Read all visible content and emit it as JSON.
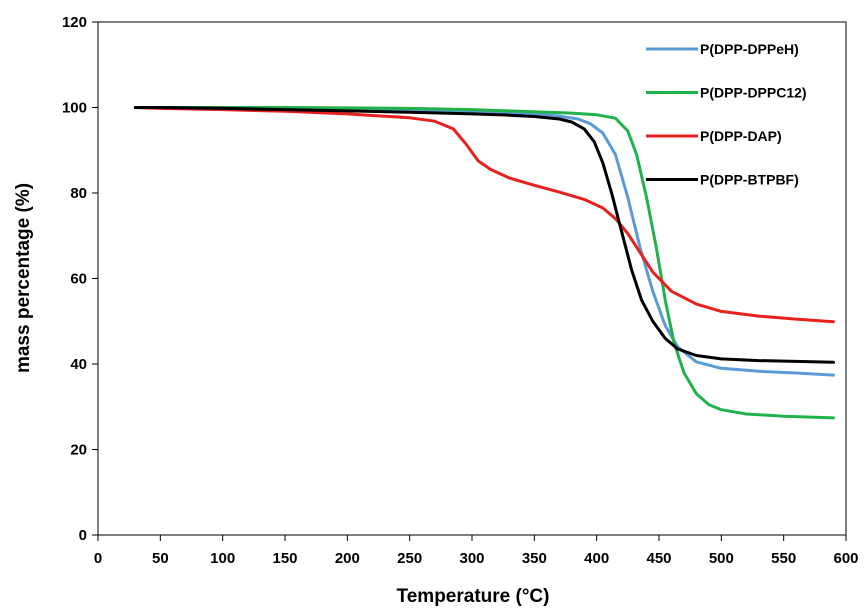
{
  "chart_data": {
    "type": "line",
    "xlabel": "Temperature (°C)",
    "ylabel": "mass percentage  (%)",
    "xlim": [
      0,
      600
    ],
    "ylim": [
      0,
      120
    ],
    "xticks": [
      0,
      50,
      100,
      150,
      200,
      250,
      300,
      350,
      400,
      450,
      500,
      550,
      600
    ],
    "yticks": [
      0,
      20,
      40,
      60,
      80,
      100,
      120
    ],
    "grid": false,
    "legend_position": "top-right",
    "series": [
      {
        "name": "P(DPP-DPPeH)",
        "color": "#5b9bd5",
        "x": [
          30,
          50,
          100,
          150,
          200,
          250,
          300,
          330,
          350,
          370,
          385,
          395,
          405,
          415,
          425,
          435,
          445,
          455,
          465,
          480,
          500,
          530,
          560,
          590
        ],
        "y": [
          100,
          99.9,
          99.8,
          99.7,
          99.6,
          99.4,
          99.1,
          98.8,
          98.5,
          98,
          97.3,
          96.2,
          94,
          89,
          79,
          67,
          57,
          49,
          44,
          40.5,
          39,
          38.3,
          37.9,
          37.4
        ]
      },
      {
        "name": "P(DPP-DPPC12)",
        "color": "#22b24c",
        "x": [
          30,
          50,
          100,
          150,
          200,
          250,
          300,
          350,
          380,
          400,
          415,
          425,
          432,
          440,
          448,
          455,
          462,
          470,
          480,
          490,
          500,
          520,
          550,
          590
        ],
        "y": [
          100,
          100,
          100,
          100,
          99.9,
          99.8,
          99.5,
          99,
          98.7,
          98.3,
          97.5,
          94.5,
          89,
          79,
          67,
          55,
          45,
          38,
          33,
          30.5,
          29.3,
          28.3,
          27.8,
          27.4
        ]
      },
      {
        "name": "P(DPP-DAP)",
        "color": "#e8201e",
        "x": [
          30,
          50,
          100,
          150,
          200,
          250,
          270,
          285,
          295,
          305,
          315,
          330,
          350,
          370,
          390,
          405,
          415,
          425,
          435,
          445,
          460,
          480,
          500,
          530,
          560,
          590
        ],
        "y": [
          100,
          99.8,
          99.5,
          99.1,
          98.5,
          97.6,
          96.8,
          95,
          91.5,
          87.5,
          85.5,
          83.5,
          81.8,
          80.2,
          78.5,
          76.5,
          74,
          70.5,
          66,
          61.5,
          57,
          54,
          52.3,
          51.2,
          50.5,
          49.9
        ]
      },
      {
        "name": "P(DPP-BTPBF)",
        "color": "#000000",
        "x": [
          30,
          50,
          100,
          150,
          200,
          250,
          300,
          330,
          350,
          370,
          380,
          390,
          398,
          405,
          412,
          420,
          428,
          436,
          445,
          455,
          465,
          480,
          500,
          530,
          560,
          590
        ],
        "y": [
          100,
          100,
          99.8,
          99.5,
          99.2,
          98.9,
          98.5,
          98.2,
          97.9,
          97.3,
          96.6,
          95,
          92,
          87,
          80,
          71,
          62,
          55,
          50,
          46,
          43.5,
          42,
          41.2,
          40.8,
          40.6,
          40.4
        ]
      }
    ]
  }
}
